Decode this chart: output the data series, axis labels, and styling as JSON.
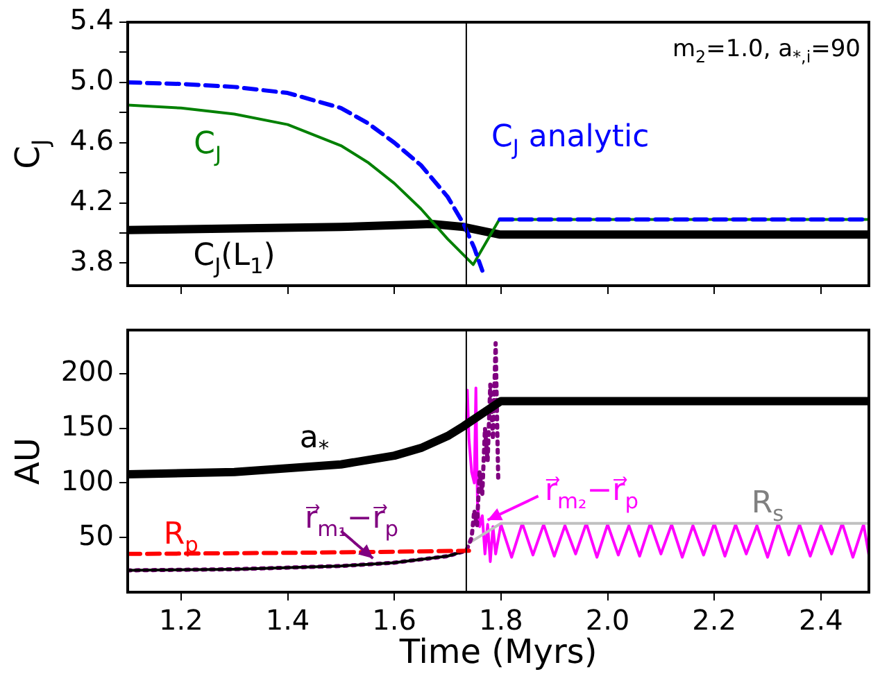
{
  "chart_data": [
    {
      "type": "line",
      "ylabel": "C$_{J}$",
      "xlim": [
        1.1,
        2.49
      ],
      "xticks": [
        1.2,
        1.4,
        1.6,
        1.8,
        2.0,
        2.2,
        2.4
      ],
      "ylim": [
        3.65,
        5.4
      ],
      "yticks": [
        3.8,
        {
          "value": 4.0,
          "label": null
        },
        4.2,
        {
          "value": 4.4,
          "label": null
        },
        4.6,
        {
          "value": 4.8,
          "label": null
        },
        {
          "value": 5,
          "label": "5.0"
        },
        {
          "value": 5.2,
          "label": null
        },
        5.4
      ],
      "tick_labels": "y",
      "grid": false,
      "annotations": [
        "m$_{2}$=1.0, a$_{*,i}$=90"
      ],
      "ref_lines": [
        {
          "axis": "x",
          "value": 1.735,
          "color": "#000000"
        }
      ],
      "series": [
        {
          "name": "C$_{J}$ analytic",
          "color": "#0000ff",
          "line_style": "dashed",
          "x": [
            1.1,
            1.2,
            1.3,
            1.4,
            1.5,
            1.55,
            1.6,
            1.65,
            1.7,
            1.73,
            1.75,
            1.765,
            1.775,
            1.797,
            1.798,
            2.49
          ],
          "values": [
            5.0,
            4.99,
            4.97,
            4.93,
            4.83,
            4.73,
            4.6,
            4.45,
            4.24,
            4.06,
            3.9,
            3.75,
            null,
            null,
            4.09,
            4.09
          ]
        },
        {
          "name": "C$_{J}$",
          "color": "#008000",
          "line_style": "solid",
          "x": [
            1.1,
            1.2,
            1.3,
            1.4,
            1.5,
            1.55,
            1.6,
            1.65,
            1.7,
            1.748,
            1.797,
            2.49
          ],
          "values": [
            4.85,
            4.83,
            4.79,
            4.72,
            4.58,
            4.47,
            4.33,
            4.16,
            3.96,
            3.79,
            4.09,
            4.09
          ]
        },
        {
          "name": "C$_{J}$(L$_{1}$)",
          "color": "#000000",
          "line_style": "solid",
          "x": [
            1.1,
            1.3,
            1.5,
            1.67,
            1.73,
            1.797,
            2.49
          ],
          "values": [
            4.02,
            4.03,
            4.04,
            4.06,
            4.04,
            3.99,
            3.99
          ]
        }
      ]
    },
    {
      "type": "line",
      "ylabel": "AU",
      "xlabel": "Time (Myrs)",
      "xlim": [
        1.1,
        2.49
      ],
      "xticks": [
        1.2,
        1.4,
        1.6,
        1.8,
        {
          "value": 2,
          "label": "2.0"
        },
        2.2,
        2.4
      ],
      "ylim": [
        0,
        240
      ],
      "yticks": [
        50,
        100,
        150,
        200
      ],
      "grid": false,
      "ref_lines": [
        {
          "axis": "x",
          "value": 1.735,
          "color": "#000000"
        }
      ],
      "series": [
        {
          "name": "a$_{*}$",
          "color": "#000000",
          "line_style": "solid",
          "x": [
            1.1,
            1.3,
            1.5,
            1.6,
            1.65,
            1.7,
            1.73,
            1.8,
            2.49
          ],
          "values": [
            108,
            110,
            117,
            125,
            132,
            143,
            152,
            175,
            175
          ]
        },
        {
          "name": "R$_{p}$",
          "color": "#ff0000",
          "line_style": "dashed",
          "x": [
            1.1,
            1.4,
            1.6,
            1.74
          ],
          "values": [
            35,
            36,
            37,
            38
          ]
        },
        {
          "color": "#000000",
          "line_style": "solid",
          "x": [
            1.1,
            1.3,
            1.5,
            1.6,
            1.7,
            1.735
          ],
          "values": [
            20,
            21,
            24,
            27,
            33,
            38
          ]
        },
        {
          "name": "r⃗$_{m₁}$−r⃗$_{p}$",
          "color": "#800080",
          "line_style": "dotted",
          "x": [
            1.1,
            1.3,
            1.5,
            1.6,
            1.7,
            1.735,
            1.745,
            1.75,
            1.755,
            1.76,
            1.765,
            1.77,
            1.775,
            1.78,
            1.785,
            1.79,
            1.795
          ],
          "values": [
            20,
            21,
            24,
            27,
            33,
            38,
            50,
            75,
            60,
            110,
            90,
            150,
            120,
            190,
            140,
            228,
            100
          ]
        },
        {
          "name": "R$_{s}$",
          "color": "#c0c0c0",
          "line_style": "solid",
          "x": [
            1.74,
            1.8,
            2.49
          ],
          "values": [
            45,
            63,
            63
          ]
        },
        {
          "name": "r⃗$_{m₂}$−r⃗$_{p}$",
          "color": "#ff00ff",
          "line_style": "solid",
          "x": [
            1.735,
            1.737,
            1.74,
            1.745,
            1.75,
            1.753,
            1.756,
            1.76,
            1.765,
            1.77,
            1.775,
            1.78,
            1.785,
            1.79,
            1.8,
            1.82,
            1.84,
            1.86,
            1.88,
            1.9,
            1.92,
            1.94,
            1.96,
            1.98,
            2.0,
            2.02,
            2.04,
            2.06,
            2.08,
            2.1,
            2.12,
            2.14,
            2.16,
            2.18,
            2.2,
            2.22,
            2.24,
            2.26,
            2.28,
            2.3,
            2.32,
            2.34,
            2.36,
            2.38,
            2.4,
            2.42,
            2.44,
            2.46,
            2.48,
            2.49
          ],
          "values": [
            150,
            185,
            140,
            110,
            100,
            187,
            80,
            60,
            70,
            35,
            62,
            28,
            60,
            35,
            62,
            32,
            63,
            34,
            62,
            33,
            61,
            35,
            63,
            32,
            62,
            34,
            61,
            33,
            63,
            35,
            62,
            32,
            61,
            34,
            63,
            33,
            62,
            35,
            61,
            32,
            63,
            34,
            62,
            33,
            61,
            35,
            63,
            32,
            62,
            34
          ]
        }
      ]
    }
  ]
}
